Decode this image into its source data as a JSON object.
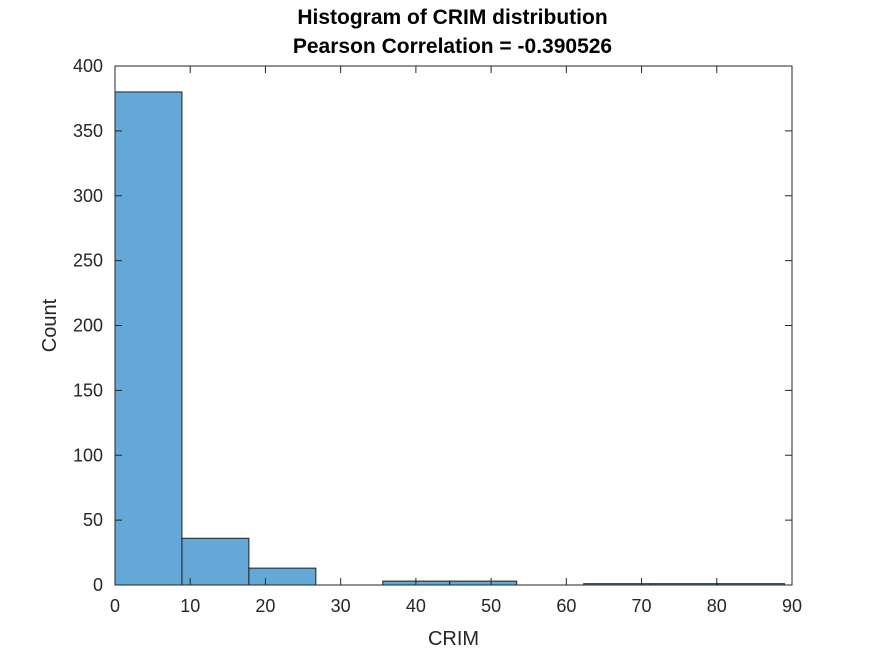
{
  "chart_data": {
    "type": "bar",
    "title": "Histogram of CRIM distribution",
    "subtitle": "Pearson Correlation = -0.390526",
    "xlabel": "CRIM",
    "ylabel": "Count",
    "xlim": [
      0,
      90
    ],
    "ylim": [
      0,
      400
    ],
    "xticks": [
      0,
      10,
      20,
      30,
      40,
      50,
      60,
      70,
      80,
      90
    ],
    "yticks": [
      0,
      50,
      100,
      150,
      200,
      250,
      300,
      350,
      400
    ],
    "bin_edges": [
      0,
      8.9,
      17.8,
      26.7,
      35.6,
      44.5,
      53.4,
      62.3,
      71.2,
      80.1,
      89.0
    ],
    "values": [
      380,
      36,
      13,
      0,
      3,
      3,
      0,
      1,
      1,
      1
    ],
    "grid": false,
    "colors": {
      "bar_fill": "#63A8D7",
      "bar_edge": "#1F1F1F",
      "axis": "#262626"
    }
  }
}
